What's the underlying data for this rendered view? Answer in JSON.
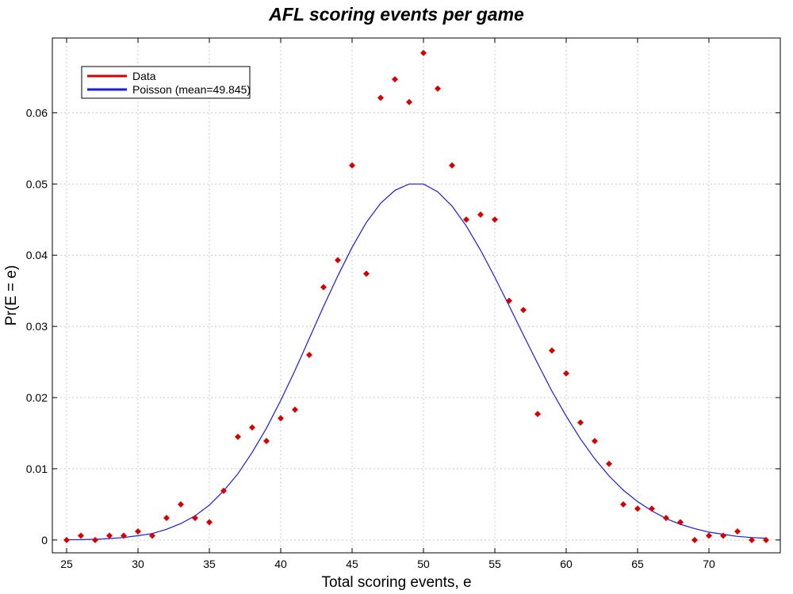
{
  "chart_data": {
    "type": "scatter",
    "title": "AFL scoring events per game",
    "xlabel": "Total scoring events, e",
    "ylabel": "Pr(E = e)",
    "xlim": [
      24,
      75
    ],
    "ylim": [
      -0.0018,
      0.0705
    ],
    "xticks": [
      "25",
      "30",
      "35",
      "40",
      "45",
      "50",
      "55",
      "60",
      "65",
      "70"
    ],
    "yticks": [
      "0",
      "0.01",
      "0.02",
      "0.03",
      "0.04",
      "0.05",
      "0.06"
    ],
    "grid": true,
    "legend_position": "top-left",
    "colors": {
      "data": "#d40000",
      "poisson": "#1a1ae6"
    },
    "series": [
      {
        "name": "Data",
        "style": "markers",
        "x": [
          25,
          26,
          27,
          28,
          29,
          30,
          31,
          32,
          33,
          34,
          35,
          36,
          37,
          38,
          39,
          40,
          41,
          42,
          43,
          44,
          45,
          46,
          47,
          48,
          49,
          50,
          51,
          52,
          53,
          54,
          55,
          56,
          57,
          58,
          59,
          60,
          61,
          62,
          63,
          64,
          65,
          66,
          67,
          68,
          69,
          70,
          71,
          72,
          73,
          74
        ],
        "y": [
          0.0,
          0.0006,
          0.0,
          0.0006,
          0.0006,
          0.0012,
          0.0006,
          0.0031,
          0.005,
          0.0031,
          0.0025,
          0.0069,
          0.0145,
          0.0158,
          0.0139,
          0.0171,
          0.0183,
          0.026,
          0.0355,
          0.0393,
          0.0526,
          0.0374,
          0.0621,
          0.0647,
          0.0615,
          0.0684,
          0.0634,
          0.0526,
          0.045,
          0.0457,
          0.045,
          0.0336,
          0.0323,
          0.0177,
          0.0266,
          0.0234,
          0.0165,
          0.0139,
          0.0107,
          0.005,
          0.0044,
          0.0044,
          0.0031,
          0.0025,
          0.0,
          0.0006,
          0.0006,
          0.0012,
          0.0,
          0.0
        ]
      },
      {
        "name": "Poisson (mean=49.845)",
        "style": "line",
        "x": [
          25,
          26,
          27,
          28,
          29,
          30,
          31,
          32,
          33,
          34,
          35,
          36,
          37,
          38,
          39,
          40,
          41,
          42,
          43,
          44,
          45,
          46,
          47,
          48,
          49,
          50,
          51,
          52,
          53,
          54,
          55,
          56,
          57,
          58,
          59,
          60,
          61,
          62,
          63,
          64,
          65,
          66,
          67,
          68,
          69,
          70,
          71,
          72,
          73,
          74
        ],
        "y": [
          3e-05,
          5e-05,
          0.0001,
          0.0002,
          0.00035,
          0.0006,
          0.0009,
          0.0015,
          0.0023,
          0.0034,
          0.0049,
          0.0069,
          0.0093,
          0.0123,
          0.0157,
          0.0196,
          0.0238,
          0.0283,
          0.0328,
          0.0371,
          0.0411,
          0.0446,
          0.0473,
          0.0491,
          0.05,
          0.05,
          0.0489,
          0.0469,
          0.0441,
          0.0407,
          0.0369,
          0.0329,
          0.0288,
          0.0248,
          0.0209,
          0.0174,
          0.0142,
          0.0114,
          0.009,
          0.007,
          0.0054,
          0.0041,
          0.003,
          0.0022,
          0.0016,
          0.0011,
          0.0008,
          0.0005,
          0.00035,
          0.00025
        ]
      }
    ]
  }
}
